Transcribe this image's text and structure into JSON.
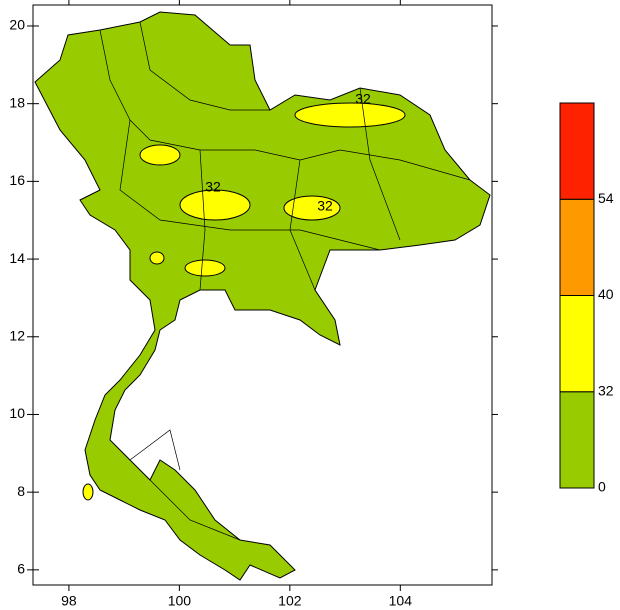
{
  "map": {
    "xlim": [
      97.35,
      105.66
    ],
    "ylim": [
      5.61,
      20.54
    ],
    "xticks": [
      98,
      100,
      102,
      104
    ],
    "yticks": [
      6,
      8,
      10,
      12,
      14,
      16,
      18,
      20
    ],
    "land_color": "#99cc00",
    "contour_color": "#ffff00",
    "contour_labels": [
      32,
      32,
      32
    ],
    "legend": {
      "levels": [
        0,
        32,
        40,
        54
      ],
      "colors": [
        "#99cc00",
        "#ffff00",
        "#ff9900",
        "#ff2200"
      ]
    }
  }
}
